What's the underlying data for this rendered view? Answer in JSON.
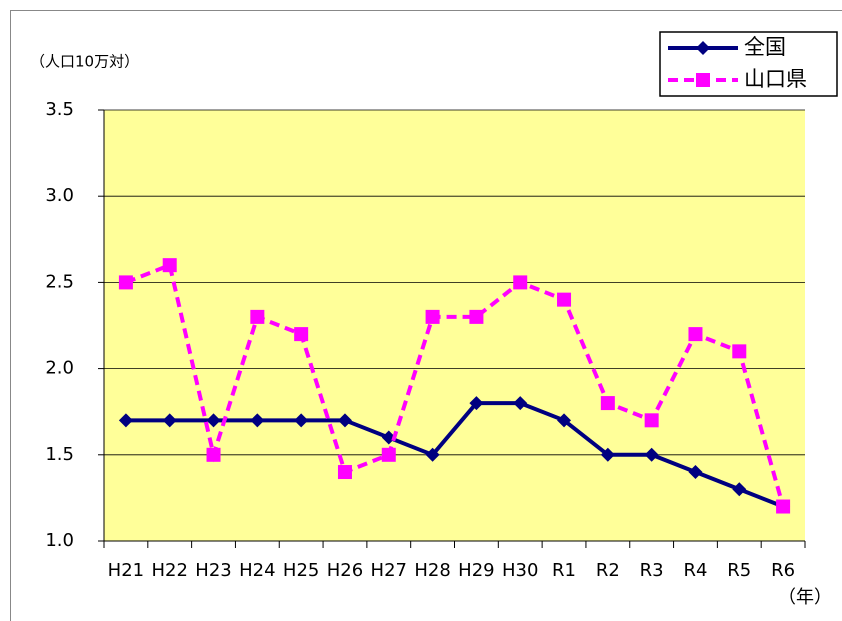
{
  "chart_data": {
    "type": "line",
    "y_unit": "（人口10万対）",
    "x_unit": "（年）",
    "categories": [
      "H21",
      "H22",
      "H23",
      "H24",
      "H25",
      "H26",
      "H27",
      "H28",
      "H29",
      "H30",
      "R1",
      "R2",
      "R3",
      "R4",
      "R5",
      "R6"
    ],
    "series": [
      {
        "name": "全国",
        "color": "#000080",
        "marker": "diamond",
        "dash": false,
        "values": [
          1.7,
          1.7,
          1.7,
          1.7,
          1.7,
          1.7,
          1.6,
          1.5,
          1.8,
          1.8,
          1.7,
          1.5,
          1.5,
          1.4,
          1.3,
          1.2
        ]
      },
      {
        "name": "山口県",
        "color": "#ff00ff",
        "marker": "square",
        "dash": true,
        "values": [
          2.5,
          2.6,
          1.5,
          2.3,
          2.2,
          1.4,
          1.5,
          2.3,
          2.3,
          2.5,
          2.4,
          1.8,
          1.7,
          2.2,
          2.1,
          1.2
        ]
      }
    ],
    "ylim": [
      1.0,
      3.5
    ],
    "yticks": [
      {
        "value": 1.0,
        "label": "1.0"
      },
      1.5,
      {
        "value": 2.0,
        "label": "2.0"
      },
      2.5,
      {
        "value": 3.0,
        "label": "3.0"
      },
      {
        "value": 3.5,
        "label": "3.5"
      }
    ],
    "grid": true,
    "plot_background": "#ffff99",
    "legend": "top-right"
  }
}
